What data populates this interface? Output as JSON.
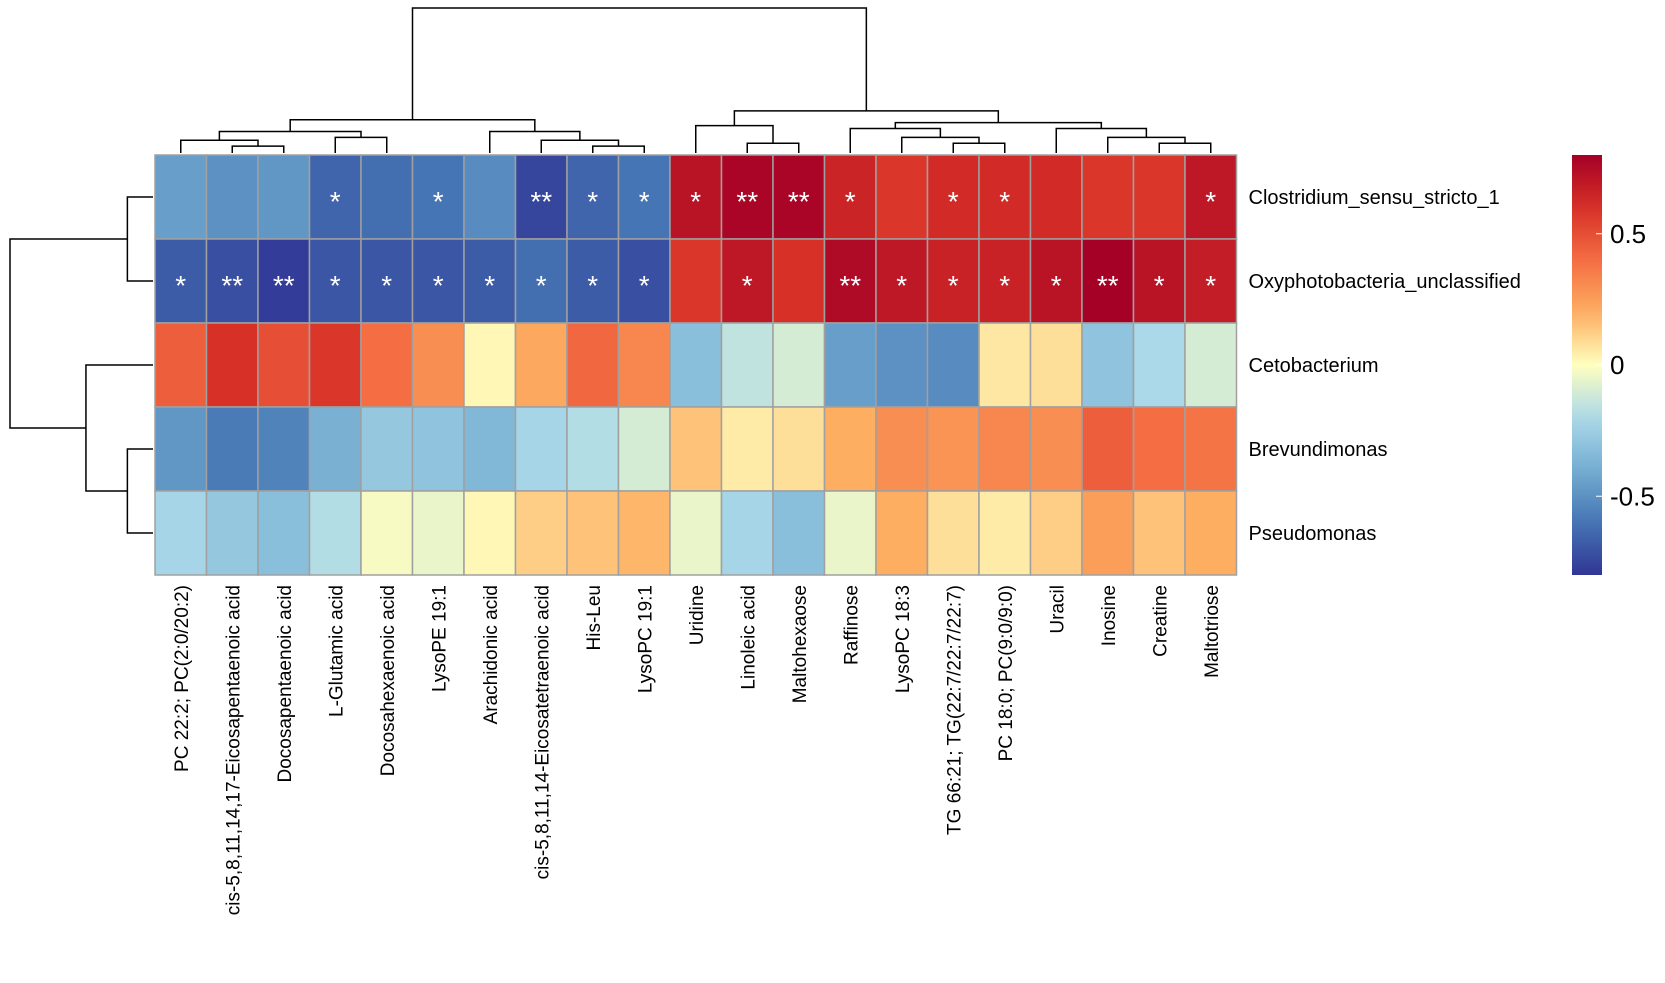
{
  "chart_data": {
    "type": "heatmap",
    "rows": [
      "Clostridium_sensu_stricto_1",
      "Oxyphotobacteria_unclassified",
      "Cetobacterium",
      "Brevundimonas",
      "Pseudomonas"
    ],
    "columns": [
      "PC 22:2; PC(2:0/20:2)",
      "cis-5,8,11,14,17-Eicosapentaenoic acid",
      "Docosapentaenoic acid",
      "L-Glutamic acid",
      "Docosahexaenoic acid",
      "LysoPE 19:1",
      "Arachidonic acid",
      "cis-5,8,11,14-Eicosatetraenoic acid",
      "His-Leu",
      "LysoPC 19:1",
      "Uridine",
      "Linoleic acid",
      "Maltohexaose",
      "Raffinose",
      "LysoPC 18:3",
      "TG 66:21; TG(22:7/22:7/22:7)",
      "PC 18:0; PC(9:0/9:0)",
      "Uracil",
      "Inosine",
      "Creatine",
      "Maltotriose"
    ],
    "values": [
      [
        -0.45,
        -0.5,
        -0.48,
        -0.65,
        -0.62,
        -0.6,
        -0.52,
        -0.75,
        -0.65,
        -0.6,
        0.72,
        0.78,
        0.78,
        0.65,
        0.58,
        0.62,
        0.62,
        0.62,
        0.58,
        0.58,
        0.7
      ],
      [
        -0.68,
        -0.72,
        -0.78,
        -0.7,
        -0.7,
        -0.7,
        -0.68,
        -0.62,
        -0.68,
        -0.72,
        0.58,
        0.7,
        0.6,
        0.76,
        0.7,
        0.66,
        0.66,
        0.72,
        0.8,
        0.72,
        0.68
      ],
      [
        0.45,
        0.6,
        0.5,
        0.58,
        0.4,
        0.3,
        0.02,
        0.22,
        0.42,
        0.32,
        -0.32,
        -0.15,
        -0.1,
        -0.45,
        -0.5,
        -0.52,
        0.06,
        0.08,
        -0.3,
        -0.2,
        -0.1
      ],
      [
        -0.48,
        -0.58,
        -0.55,
        -0.38,
        -0.28,
        -0.3,
        -0.35,
        -0.22,
        -0.18,
        -0.1,
        0.15,
        0.05,
        0.08,
        0.2,
        0.3,
        0.28,
        0.32,
        0.3,
        0.45,
        0.4,
        0.38
      ],
      [
        -0.22,
        -0.28,
        -0.32,
        -0.18,
        -0.02,
        -0.05,
        0.02,
        0.12,
        0.15,
        0.18,
        -0.05,
        -0.22,
        -0.32,
        -0.05,
        0.2,
        0.08,
        0.05,
        0.12,
        0.25,
        0.15,
        0.2
      ]
    ],
    "significance": [
      [
        "",
        "",
        "",
        "*",
        "",
        "*",
        "",
        "**",
        "*",
        "*",
        "*",
        "**",
        "**",
        "*",
        "",
        "*",
        "*",
        "",
        "",
        "",
        "*"
      ],
      [
        "*",
        "**",
        "**",
        "*",
        "*",
        "*",
        "*",
        "*",
        "*",
        "*",
        "",
        "*",
        "",
        "**",
        "*",
        "*",
        "*",
        "*",
        "**",
        "*",
        "*"
      ],
      [
        "",
        "",
        "",
        "",
        "",
        "",
        "",
        "",
        "",
        "",
        "",
        "",
        "",
        "",
        "",
        "",
        "",
        "",
        "",
        "",
        ""
      ],
      [
        "",
        "",
        "",
        "",
        "",
        "",
        "",
        "",
        "",
        "",
        "",
        "",
        "",
        "",
        "",
        "",
        "",
        "",
        "",
        "",
        ""
      ],
      [
        "",
        "",
        "",
        "",
        "",
        "",
        "",
        "",
        "",
        "",
        "",
        "",
        "",
        "",
        "",
        "",
        "",
        "",
        "",
        "",
        ""
      ]
    ],
    "color_scale": {
      "range": [
        -0.8,
        0.8
      ],
      "ticks": [
        0.5,
        0,
        -0.5
      ],
      "tick_labels": [
        "0.5",
        "0",
        "-0.5"
      ],
      "low_color": "#313695",
      "mid_color": "#ffffbf",
      "high_color": "#a50026"
    },
    "col_dendrogram": {
      "leaf_order": [
        0,
        1,
        2,
        3,
        4,
        5,
        6,
        7,
        8,
        9,
        10,
        11,
        12,
        13,
        14,
        15,
        16,
        17,
        18,
        19,
        20
      ],
      "merges": [
        [
          1,
          2,
          0.3
        ],
        [
          0,
          -1,
          0.5
        ],
        [
          3,
          4,
          0.6
        ],
        [
          -2,
          -3,
          0.8
        ],
        [
          8,
          9,
          0.3
        ],
        [
          7,
          -5,
          0.5
        ],
        [
          6,
          -6,
          0.8
        ],
        [
          -4,
          -7,
          1.2
        ],
        [
          11,
          12,
          0.4
        ],
        [
          10,
          -9,
          1.0
        ],
        [
          15,
          16,
          0.4
        ],
        [
          14,
          -11,
          0.6
        ],
        [
          13,
          -12,
          0.9
        ],
        [
          19,
          20,
          0.4
        ],
        [
          18,
          -14,
          0.6
        ],
        [
          17,
          -15,
          0.9
        ],
        [
          -13,
          -16,
          1.1
        ],
        [
          -10,
          -17,
          1.5
        ],
        [
          -8,
          -18,
          5.0
        ]
      ]
    },
    "row_dendrogram": {
      "leaf_order": [
        0,
        1,
        2,
        3,
        4
      ],
      "merges": [
        [
          0,
          1,
          0.4
        ],
        [
          3,
          4,
          0.4
        ],
        [
          2,
          -2,
          1.0
        ],
        [
          -1,
          -3,
          2.1
        ]
      ]
    }
  },
  "colors": {
    "cell_border": "#a0a0a0",
    "dendrogram_line": "#000000",
    "star": "#ffffff",
    "label": "#000000"
  }
}
